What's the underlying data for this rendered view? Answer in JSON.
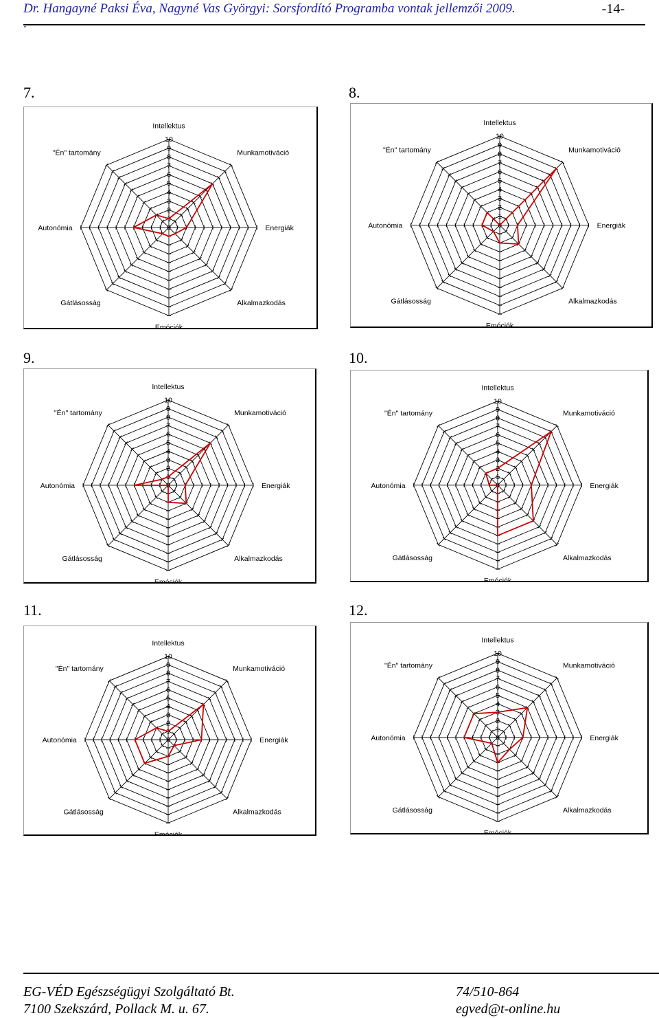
{
  "header": {
    "title": "Dr. Hangayné Paksi Éva, Nagyné Vas Györgyi: Sorsfordító Programba vontak jellemzői 2009.",
    "dot": ".",
    "page": "-14-"
  },
  "chart_data": [
    {
      "type": "radar",
      "number": "7.",
      "axes": [
        "Intellektus",
        "Munkamotiváció",
        "Energiák",
        "Alkalmazkodás",
        "Emóciók",
        "Gátlásosság",
        "Autonómia",
        "\"Én\" tartomány"
      ],
      "tick_labels": [
        "0",
        "1",
        "2",
        "3",
        "4",
        "5",
        "6",
        "7",
        "8",
        "9",
        "10"
      ],
      "scale": [
        0,
        10
      ],
      "grid": true,
      "color": "#cc0000",
      "series": [
        {
          "values": [
            1,
            7,
            2,
            1,
            1,
            1,
            4,
            2
          ]
        }
      ]
    },
    {
      "type": "radar",
      "number": "8.",
      "axes": [
        "Intellektus",
        "Munkamotiváció",
        "Energiák",
        "Alkalmazkodás",
        "Emóciók",
        "Gátlásosság",
        "Autonómia",
        "\"Én\" tartomány"
      ],
      "tick_labels": [
        "0",
        "1",
        "2",
        "3",
        "4",
        "5",
        "6",
        "7",
        "8",
        "9",
        "10"
      ],
      "scale": [
        0,
        10
      ],
      "grid": true,
      "color": "#cc0000",
      "series": [
        {
          "values": [
            0,
            9,
            2,
            3,
            2,
            1,
            2,
            2
          ]
        }
      ]
    },
    {
      "type": "radar",
      "number": "9.",
      "axes": [
        "Intellektus",
        "Munkamotiváció",
        "Energiák",
        "Alkalmazkodás",
        "Emóciók",
        "Gátlásosság",
        "Autonómia",
        "\"Én\" tartomány"
      ],
      "tick_labels": [
        "0",
        "1",
        "2",
        "3",
        "4",
        "5",
        "6",
        "7",
        "8",
        "9",
        "10"
      ],
      "scale": [
        0,
        10
      ],
      "grid": true,
      "color": "#cc0000",
      "series": [
        {
          "values": [
            1,
            7,
            2,
            3,
            2,
            0,
            4,
            1
          ]
        }
      ]
    },
    {
      "type": "radar",
      "number": "10.",
      "axes": [
        "Intellektus",
        "Munkamotiváció",
        "Energiák",
        "Alkalmazkodás",
        "Emóciók",
        "Gátlásosság",
        "Autonómia",
        "\"Én\" tartomány"
      ],
      "tick_labels": [
        "0",
        "1",
        "2",
        "3",
        "4",
        "5",
        "6",
        "7",
        "8",
        "9",
        "10"
      ],
      "scale": [
        0,
        10
      ],
      "grid": true,
      "color": "#cc0000",
      "series": [
        {
          "values": [
            2,
            9,
            4,
            6,
            6,
            0,
            1,
            2
          ]
        }
      ]
    },
    {
      "type": "radar",
      "number": "11.",
      "axes": [
        "Intellektus",
        "Munkamotiváció",
        "Energiák",
        "Alkalmazkodás",
        "Emóciók",
        "Gátlásosság",
        "Autonómia",
        "\"Én\" tartomány"
      ],
      "tick_labels": [
        "0",
        "1",
        "2",
        "3",
        "4",
        "5",
        "6",
        "7",
        "8",
        "9",
        "10"
      ],
      "scale": [
        0,
        10
      ],
      "grid": true,
      "color": "#cc0000",
      "series": [
        {
          "values": [
            1,
            6,
            4,
            1,
            2,
            4,
            4,
            2
          ]
        }
      ]
    },
    {
      "type": "radar",
      "number": "12.",
      "axes": [
        "Intellektus",
        "Munkamotiváció",
        "Energiák",
        "Alkalmazkodás",
        "Emóciók",
        "Gátlásosság",
        "Autonómia",
        "\"Én\" tartomány"
      ],
      "tick_labels": [
        "0",
        "1",
        "2",
        "3",
        "4",
        "5",
        "6",
        "7",
        "8",
        "9",
        "10"
      ],
      "scale": [
        0,
        10
      ],
      "grid": true,
      "color": "#cc0000",
      "series": [
        {
          "values": [
            3,
            5,
            3,
            2,
            3,
            1,
            4,
            4
          ]
        }
      ]
    }
  ],
  "footer": {
    "company": "EG-VÉD Egészségügyi Szolgáltató Bt.",
    "phone": "74/510-864",
    "address": "7100 Szekszárd, Pollack M. u. 67.",
    "email": "egved@t-online.hu"
  }
}
